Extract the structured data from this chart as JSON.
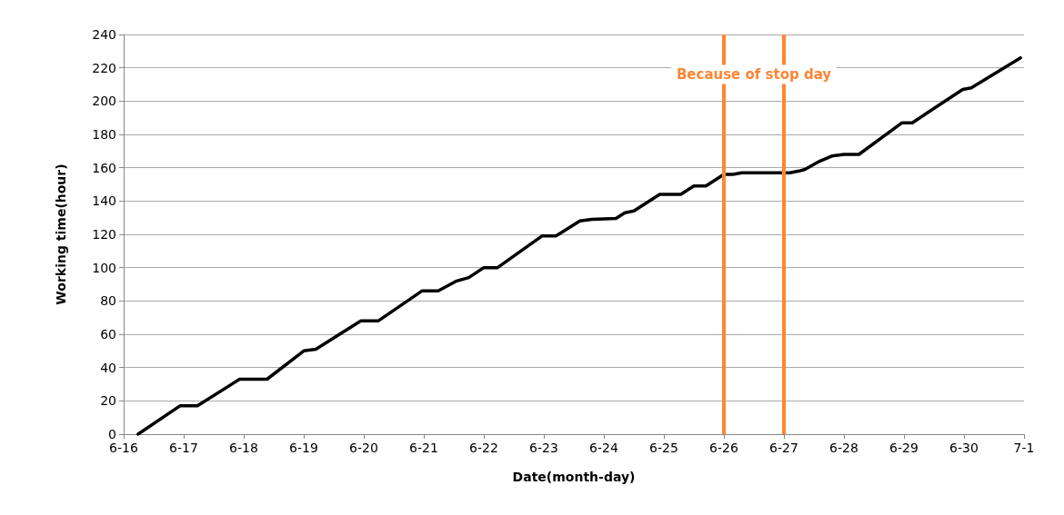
{
  "chart_data": {
    "type": "line",
    "xlabel": "Date(month-day)",
    "ylabel": "Working time(hour)",
    "x": [
      "--06-16T05:45",
      "--06-16T22:30",
      "--06-17T05:30",
      "--06-17T22:20",
      "--06-18T09:20",
      "--06-19T00:00",
      "--06-19T04:50",
      "--06-19T22:50",
      "--06-20T05:45",
      "--06-20T23:15",
      "--06-21T05:45",
      "--06-21T13:10",
      "--06-21T18:00",
      "--06-22T00:00",
      "--06-22T05:30",
      "--06-22T23:15",
      "--06-23T04:50",
      "--06-23T14:25",
      "--06-23T19:10",
      "--06-24T04:50",
      "--06-24T08:25",
      "--06-24T12:00",
      "--06-24T22:20",
      "--06-25T06:45",
      "--06-25T12:00",
      "--06-25T16:50",
      "--06-26T00:00",
      "--06-26T03:35",
      "--06-26T07:10",
      "--06-27T02:25",
      "--06-27T06:00",
      "--06-27T08:25",
      "--06-27T14:25",
      "--06-27T19:10",
      "--06-28T00:00",
      "--06-28T06:00",
      "--06-28T23:15",
      "--06-29T03:20",
      "--06-29T23:30",
      "--06-30T02:55",
      "--06-30T22:35"
    ],
    "series": [
      {
        "color": "#000000",
        "values": [
          0,
          17,
          17,
          33,
          33,
          50,
          51,
          68,
          68,
          86,
          86,
          92,
          94,
          100,
          100,
          119,
          119,
          128,
          129,
          129.5,
          133,
          134,
          144,
          144,
          149,
          149,
          156,
          156,
          157,
          157,
          158,
          159,
          164,
          167,
          168,
          168,
          187,
          187,
          207,
          208,
          226
        ]
      }
    ],
    "xlim": [
      "--06-16",
      "--07-01"
    ],
    "xticks": [
      {
        "value": "--06-16",
        "label": "6-16"
      },
      {
        "value": "--06-17",
        "label": "6-17"
      },
      {
        "value": "--06-18",
        "label": "6-18"
      },
      {
        "value": "--06-19",
        "label": "6-19"
      },
      {
        "value": "--06-20",
        "label": "6-20"
      },
      {
        "value": "--06-21",
        "label": "6-21"
      },
      {
        "value": "--06-22",
        "label": "6-22"
      },
      {
        "value": "--06-23",
        "label": "6-23"
      },
      {
        "value": "--06-24",
        "label": "6-24"
      },
      {
        "value": "--06-25",
        "label": "6-25"
      },
      {
        "value": "--06-26",
        "label": "6-26"
      },
      {
        "value": "--06-27",
        "label": "6-27"
      },
      {
        "value": "--06-28",
        "label": "6-28"
      },
      {
        "value": "--06-29",
        "label": "6-29"
      },
      {
        "value": "--06-30",
        "label": "6-30"
      },
      {
        "value": "--07-01",
        "label": "7-1"
      }
    ],
    "ylim": [
      0,
      240
    ],
    "yticks": [
      0,
      20,
      40,
      60,
      80,
      100,
      120,
      140,
      160,
      180,
      200,
      220,
      240
    ],
    "grid": "y",
    "marker": "none",
    "line_style": "solid",
    "ref_lines": [
      {
        "axis": "x",
        "value": "--06-26",
        "color": "#ff8533"
      },
      {
        "axis": "x",
        "value": "--06-27",
        "color": "#ff8533"
      }
    ],
    "annotations": [
      "Because of stop day"
    ]
  }
}
